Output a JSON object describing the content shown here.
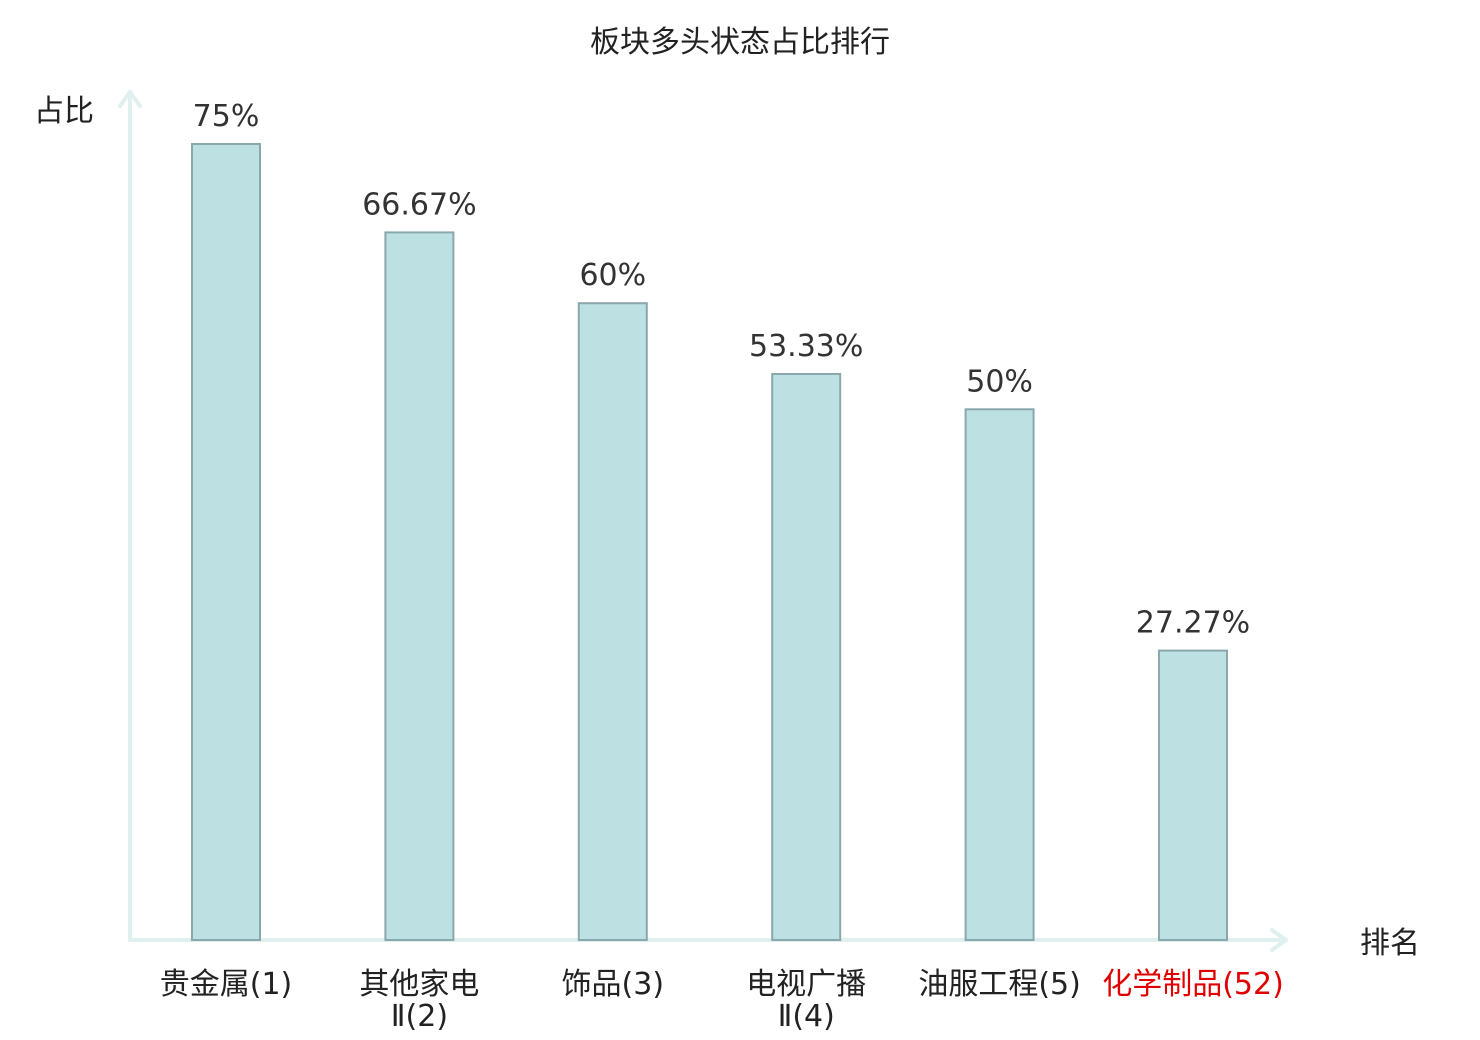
{
  "chart_data": {
    "type": "bar",
    "title": "板块多头状态占比排行",
    "ylabel": "占比",
    "xlabel": "排名",
    "ylim": [
      0,
      80
    ],
    "grid": false,
    "categories": [
      {
        "lines": [
          "贵金属(1)"
        ],
        "highlight": false
      },
      {
        "lines": [
          "其他家电",
          "Ⅱ(2)"
        ],
        "highlight": false
      },
      {
        "lines": [
          "饰品(3)"
        ],
        "highlight": false
      },
      {
        "lines": [
          "电视广播",
          "Ⅱ(4)"
        ],
        "highlight": false
      },
      {
        "lines": [
          "油服工程(5)"
        ],
        "highlight": false
      },
      {
        "lines": [
          "化学制品(52)"
        ],
        "highlight": true
      }
    ],
    "values": [
      75,
      66.67,
      60,
      53.33,
      50,
      27.27
    ],
    "value_labels": [
      "75%",
      "66.67%",
      "60%",
      "53.33%",
      "50%",
      "27.27%"
    ],
    "colors": {
      "bar_fill": "#bde0e3",
      "bar_stroke": "#8aa8ab",
      "axis": "#dff0ee",
      "text": "#222222",
      "highlight": "#e00000"
    }
  }
}
